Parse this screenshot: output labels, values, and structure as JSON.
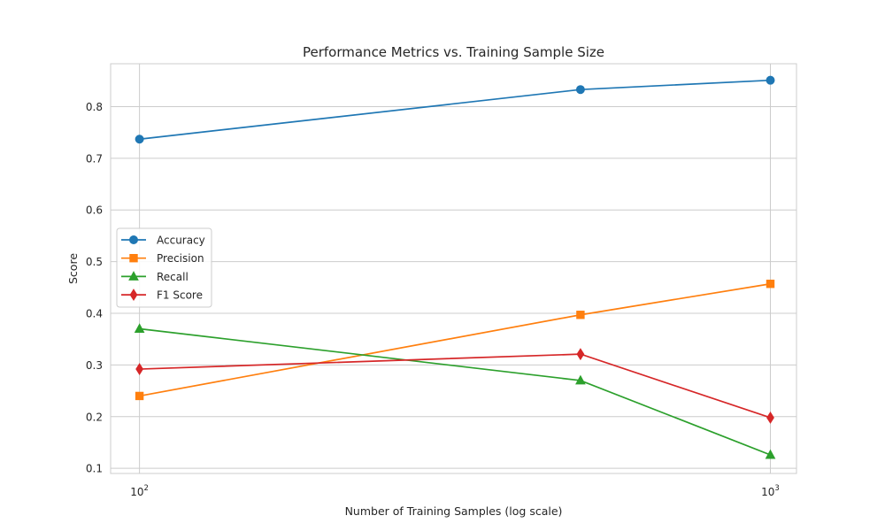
{
  "chart_data": {
    "type": "line",
    "title": "Performance Metrics vs. Training Sample Size",
    "xlabel": "Number of Training Samples (log scale)",
    "ylabel": "Score",
    "x_scale": "log",
    "x": [
      100,
      500,
      1000
    ],
    "xlim": [
      90,
      1100
    ],
    "ylim": [
      0.09,
      0.883
    ],
    "x_ticks": [
      {
        "value": 100,
        "base": "10",
        "exp": "2"
      },
      {
        "value": 1000,
        "base": "10",
        "exp": "3"
      }
    ],
    "y_ticks": [
      0.1,
      0.2,
      0.3,
      0.4,
      0.5,
      0.6,
      0.7,
      0.8
    ],
    "y_tick_labels": [
      "0.1",
      "0.2",
      "0.3",
      "0.4",
      "0.5",
      "0.6",
      "0.7",
      "0.8"
    ],
    "grid": true,
    "legend_position": "center-left",
    "series": [
      {
        "name": "Accuracy",
        "color": "#1f77b4",
        "marker": "circle",
        "values": [
          0.737,
          0.833,
          0.851
        ]
      },
      {
        "name": "Precision",
        "color": "#ff7f0e",
        "marker": "square",
        "values": [
          0.24,
          0.397,
          0.457
        ]
      },
      {
        "name": "Recall",
        "color": "#2ca02c",
        "marker": "triangle",
        "values": [
          0.37,
          0.27,
          0.126
        ]
      },
      {
        "name": "F1 Score",
        "color": "#d62728",
        "marker": "diamond",
        "values": [
          0.292,
          0.321,
          0.198
        ]
      }
    ]
  }
}
